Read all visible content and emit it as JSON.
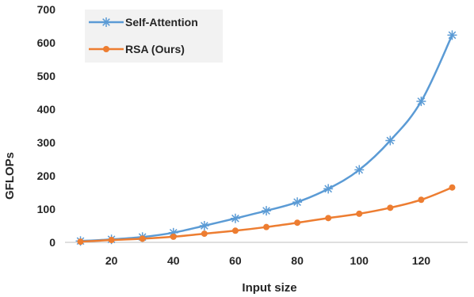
{
  "chart_data": {
    "type": "line",
    "xlabel": "Input size",
    "ylabel": "GFLOPs",
    "x": [
      10,
      20,
      30,
      40,
      50,
      60,
      70,
      80,
      90,
      100,
      110,
      120,
      130
    ],
    "xticks": [
      20,
      40,
      60,
      80,
      100,
      120
    ],
    "yticks": [
      0,
      100,
      200,
      300,
      400,
      500,
      600,
      700
    ],
    "xlim": [
      5,
      135
    ],
    "ylim": [
      0,
      700
    ],
    "grid": false,
    "legend_position": "top-left",
    "series": [
      {
        "name": "Self-Attention",
        "color": "#5B9BD5",
        "marker": "asterisk",
        "values": [
          4,
          9,
          16,
          29,
          50,
          72,
          95,
          121,
          161,
          218,
          306,
          424,
          623
        ]
      },
      {
        "name": "RSA (Ours)",
        "color": "#ED7D31",
        "marker": "circle",
        "values": [
          2,
          7,
          11,
          17,
          26,
          35,
          46,
          59,
          73,
          86,
          104,
          128,
          165
        ]
      }
    ]
  }
}
